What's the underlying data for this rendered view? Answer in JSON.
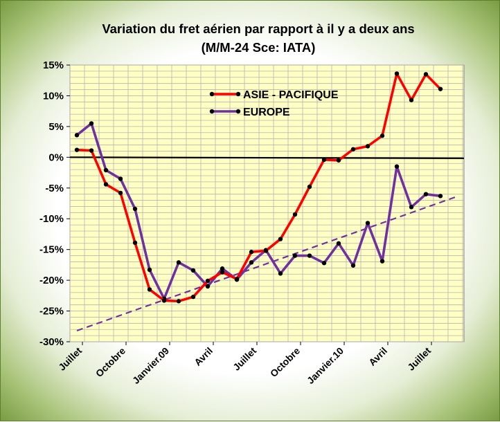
{
  "chart_data": {
    "type": "line",
    "title_line1": "Variation du fret aérien  par rapport à il y a deux ans",
    "title_line2": "(M/M-24   Sce: IATA)",
    "xlabel": "",
    "ylabel": "",
    "ylim": [
      -30,
      15
    ],
    "y_ticks": [
      "15%",
      "10%",
      "5%",
      "0%",
      "-5%",
      "-10%",
      "-15%",
      "-20%",
      "-25%",
      "-30%"
    ],
    "y_tick_values": [
      15,
      10,
      5,
      0,
      -5,
      -10,
      -15,
      -20,
      -25,
      -30
    ],
    "x_tick_labels": [
      "Juillet",
      "Octobre",
      "Janvier.09",
      "Avril",
      "Juillet",
      "Octobre",
      "Janvier.10",
      "Avril",
      "Juillet"
    ],
    "x_tick_index": [
      0,
      3,
      6,
      9,
      12,
      15,
      18,
      21,
      24
    ],
    "grid": true,
    "legend_position": "top-right",
    "series": [
      {
        "name": "ASIE - PACIFIQUE",
        "color": "#ff0000",
        "values": [
          1.2,
          1.1,
          -4.4,
          -5.8,
          -13.9,
          -21.5,
          -23.3,
          -23.4,
          -22.7,
          -20.1,
          -18.7,
          -19.8,
          -15.4,
          -15.2,
          -13.3,
          -9.3,
          -4.8,
          -0.4,
          -0.5,
          1.3,
          1.8,
          3.5,
          13.6,
          9.3,
          13.5,
          11.1
        ]
      },
      {
        "name": "EUROPE",
        "color": "#7030a0",
        "values": [
          3.6,
          5.5,
          -2.1,
          -3.5,
          -8.4,
          -18.3,
          -23.0,
          -17.1,
          -18.4,
          -21.0,
          -18.1,
          -19.9,
          -17.1,
          -15.1,
          -18.9,
          -16.0,
          -16.0,
          -17.2,
          -14.0,
          -17.6,
          -10.7,
          -16.9,
          -1.5,
          -8.1,
          -6.0,
          -6.3
        ]
      }
    ],
    "trendline": {
      "color": "#7030a0",
      "style": "dashed",
      "start": [
        0,
        -28.2
      ],
      "end": [
        26,
        -6.5
      ]
    },
    "zero_line": true,
    "colors": {
      "plot_background": "#ffffc4",
      "grid": "#b4b4b4",
      "frame_gradient_edge": "#7a9c43"
    }
  }
}
